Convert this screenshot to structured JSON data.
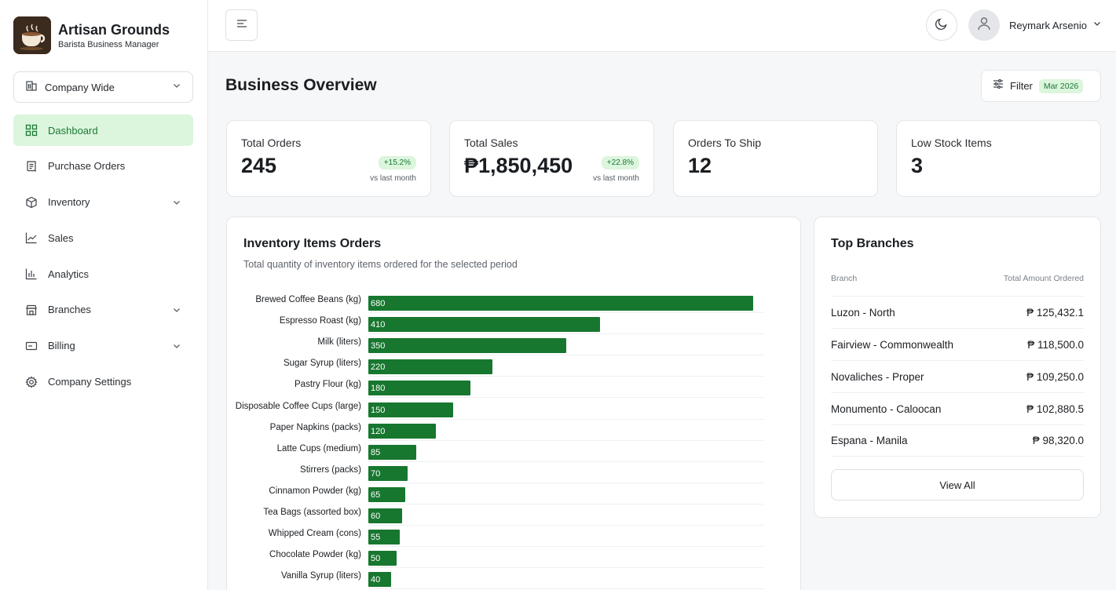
{
  "brand": {
    "title": "Artisan Grounds",
    "subtitle": "Barista Business Manager"
  },
  "scope_select": {
    "value": "Company Wide"
  },
  "sidebar": {
    "items": [
      {
        "label": "Dashboard",
        "icon": "grid-icon",
        "active": true
      },
      {
        "label": "Purchase Orders",
        "icon": "receipt-icon"
      },
      {
        "label": "Inventory",
        "icon": "box-icon",
        "expandable": true
      },
      {
        "label": "Sales",
        "icon": "line-chart-icon"
      },
      {
        "label": "Analytics",
        "icon": "bar-chart-icon"
      },
      {
        "label": "Branches",
        "icon": "store-icon",
        "expandable": true
      },
      {
        "label": "Billing",
        "icon": "card-icon",
        "expandable": true
      },
      {
        "label": "Company Settings",
        "icon": "gear-icon"
      }
    ]
  },
  "user": {
    "name": "Reymark Arsenio"
  },
  "page": {
    "title": "Business Overview"
  },
  "filter": {
    "label": "Filter",
    "badge": "Mar 2026"
  },
  "stats": [
    {
      "label": "Total Orders",
      "value": "245",
      "badge": "+15.2%",
      "note": "vs last month"
    },
    {
      "label": "Total Sales",
      "value": "₱1,850,450",
      "badge": "+22.8%",
      "note": "vs last month"
    },
    {
      "label": "Orders To Ship",
      "value": "12"
    },
    {
      "label": "Low Stock Items",
      "value": "3"
    }
  ],
  "inventory_card": {
    "title": "Inventory Items Orders",
    "subtitle": "Total quantity of inventory items ordered for the selected period"
  },
  "chart_data": {
    "type": "bar",
    "orientation": "horizontal",
    "xlim": [
      0,
      700
    ],
    "bar_color": "#17772f",
    "categories": [
      "Brewed Coffee Beans (kg)",
      "Espresso Roast (kg)",
      "Milk (liters)",
      "Sugar Syrup (liters)",
      "Pastry Flour (kg)",
      "Disposable Coffee Cups (large)",
      "Paper Napkins (packs)",
      "Latte Cups (medium)",
      "Stirrers (packs)",
      "Cinnamon Powder (kg)",
      "Tea Bags (assorted box)",
      "Whipped Cream (cons)",
      "Chocolate Powder (kg)",
      "Vanilla Syrup (liters)"
    ],
    "values": [
      680,
      410,
      350,
      220,
      180,
      150,
      120,
      85,
      70,
      65,
      60,
      55,
      50,
      40
    ]
  },
  "branches_card": {
    "title": "Top Branches",
    "col_branch": "Branch",
    "col_amount": "Total Amount Ordered",
    "rows": [
      {
        "branch": "Luzon - North",
        "amount": "₱ 125,432.1"
      },
      {
        "branch": "Fairview - Commonwealth",
        "amount": "₱ 118,500.0"
      },
      {
        "branch": "Novaliches - Proper",
        "amount": "₱ 109,250.0"
      },
      {
        "branch": "Monumento - Caloocan",
        "amount": "₱ 102,880.5"
      },
      {
        "branch": "Espana - Manila",
        "amount": "₱ 98,320.0"
      }
    ],
    "view_all": "View All"
  }
}
